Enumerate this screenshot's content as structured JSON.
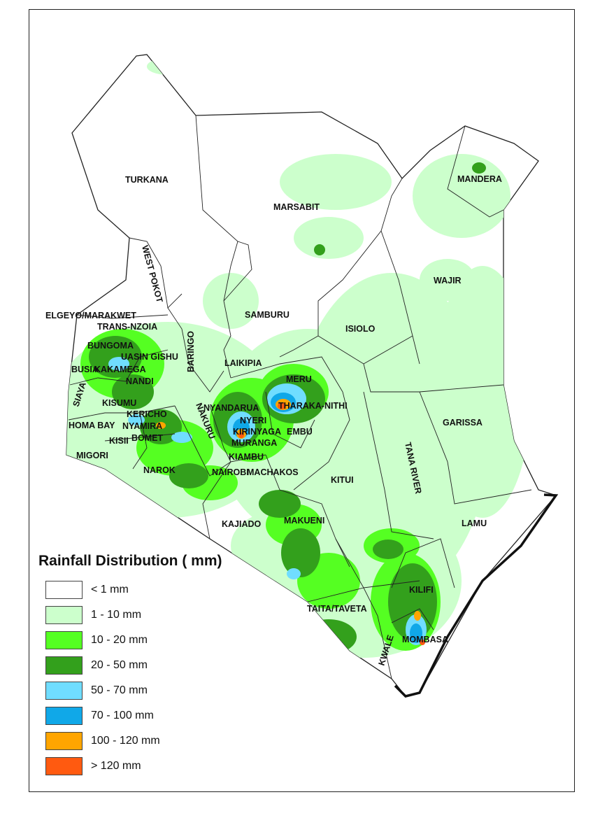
{
  "legend": {
    "title": "Rainfall Distribution ( mm)",
    "classes": [
      {
        "label": "< 1 mm",
        "color": "#ffffff"
      },
      {
        "label": "1 - 10 mm",
        "color": "#ccffcc"
      },
      {
        "label": "10 - 20 mm",
        "color": "#55ff22"
      },
      {
        "label": "20 - 50 mm",
        "color": "#33a01c"
      },
      {
        "label": "50 - 70 mm",
        "color": "#70ddff"
      },
      {
        "label": "70 - 100 mm",
        "color": "#10a8e8"
      },
      {
        "label": "100 - 120 mm",
        "color": "#ffa500"
      },
      {
        "label": "> 120 mm",
        "color": "#ff5a10"
      }
    ]
  },
  "counties": [
    "TURKANA",
    "MARSABIT",
    "MANDERA",
    "WAJIR",
    "WEST POKOT",
    "SAMBURU",
    "ISIOLO",
    "ELGEYO/MARAKWET",
    "TRANS-NZOIA",
    "BARINGO",
    "BUNGOMA",
    "UASIN GISHU",
    "BUSIA",
    "KAKAMEGA",
    "LAIKIPIA",
    "MERU",
    "NANDI",
    "SIAYA",
    "KISUMU",
    "NYANDARUA",
    "THARAKA-NITHI",
    "KERICHO",
    "HOMA BAY",
    "NYAMIRA",
    "NAKURU",
    "NYERI",
    "GARISSA",
    "KISII",
    "BOMET",
    "KIRINYAGA",
    "EMBU",
    "TANA RIVER",
    "MURANGA",
    "MIGORI",
    "KIAMBU",
    "NAROK",
    "NAIROBI",
    "MACHAKOS",
    "KITUI",
    "LAMU",
    "KAJIADO",
    "MAKUENI",
    "KILIFI",
    "TAITA/TAVETA",
    "KWALE",
    "MOMBASA"
  ]
}
